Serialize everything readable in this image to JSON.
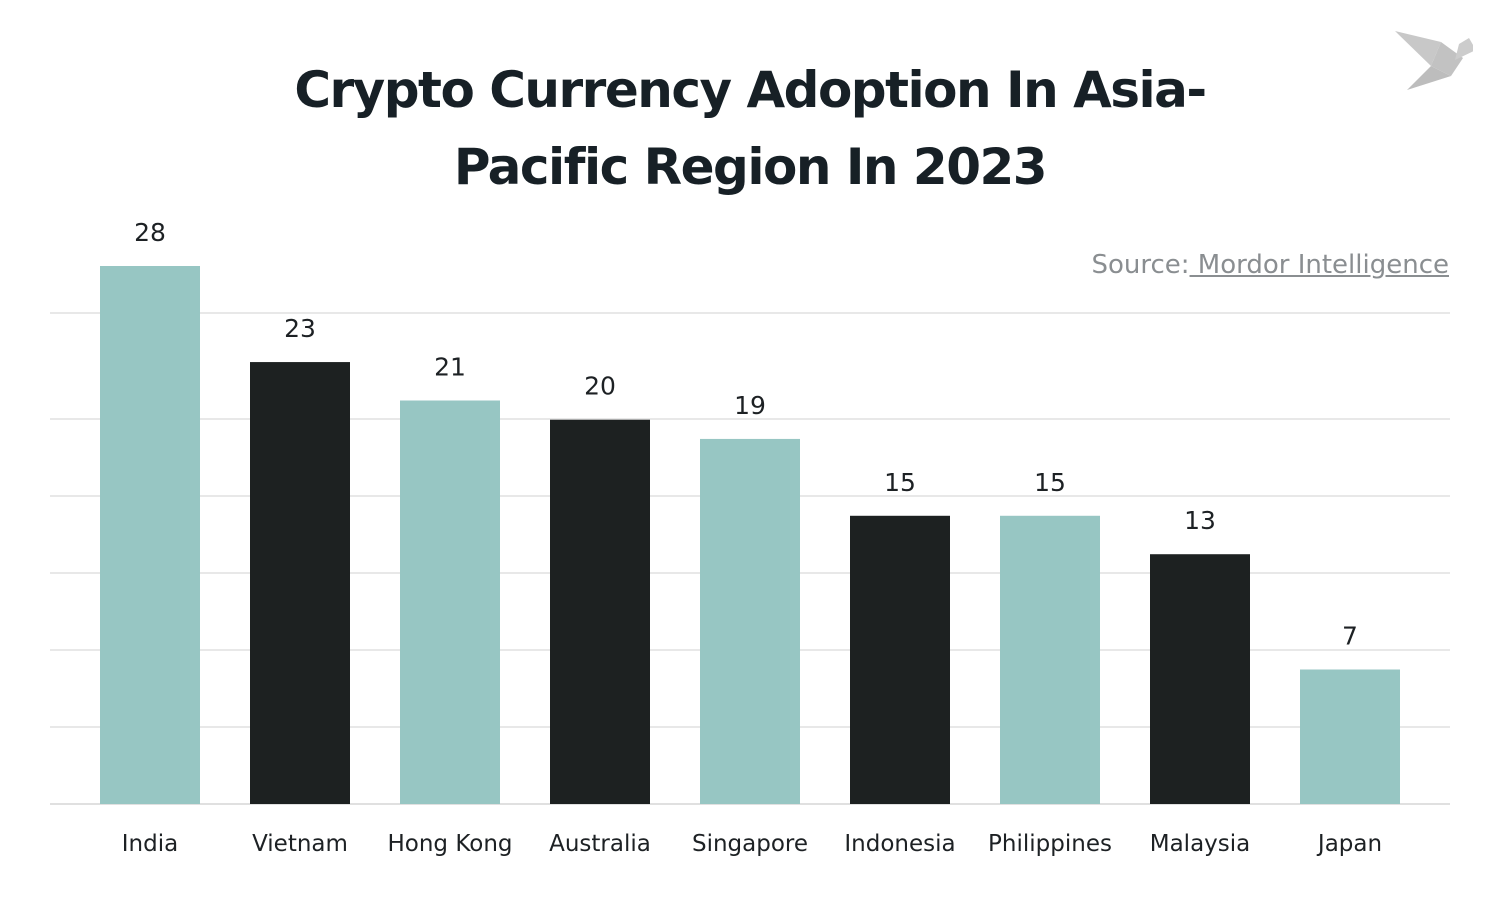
{
  "chart_data": {
    "type": "bar",
    "title_lines": [
      "Crypto Currency Adoption In Asia-",
      "Pacific Region In 2023"
    ],
    "source_prefix": "Source:",
    "source_link": " Mordor Intelligence",
    "categories": [
      "India",
      "Vietnam",
      "Hong Kong",
      "Australia",
      "Singapore",
      "Indonesia",
      "Philippines",
      "Malaysia",
      "Japan"
    ],
    "values": [
      28,
      23,
      21,
      20,
      19,
      15,
      15,
      13,
      7
    ],
    "colors": [
      "#97c6c3",
      "#1d2121",
      "#97c6c3",
      "#1d2121",
      "#97c6c3",
      "#1d2121",
      "#97c6c3",
      "#1d2121",
      "#97c6c3"
    ],
    "xlabel": "",
    "ylabel": "",
    "ylim": [
      0,
      28
    ],
    "grid": true,
    "data_labels": true,
    "gridline_color": "#e0e0e0",
    "logo_icon": "origami-bird-logo"
  }
}
